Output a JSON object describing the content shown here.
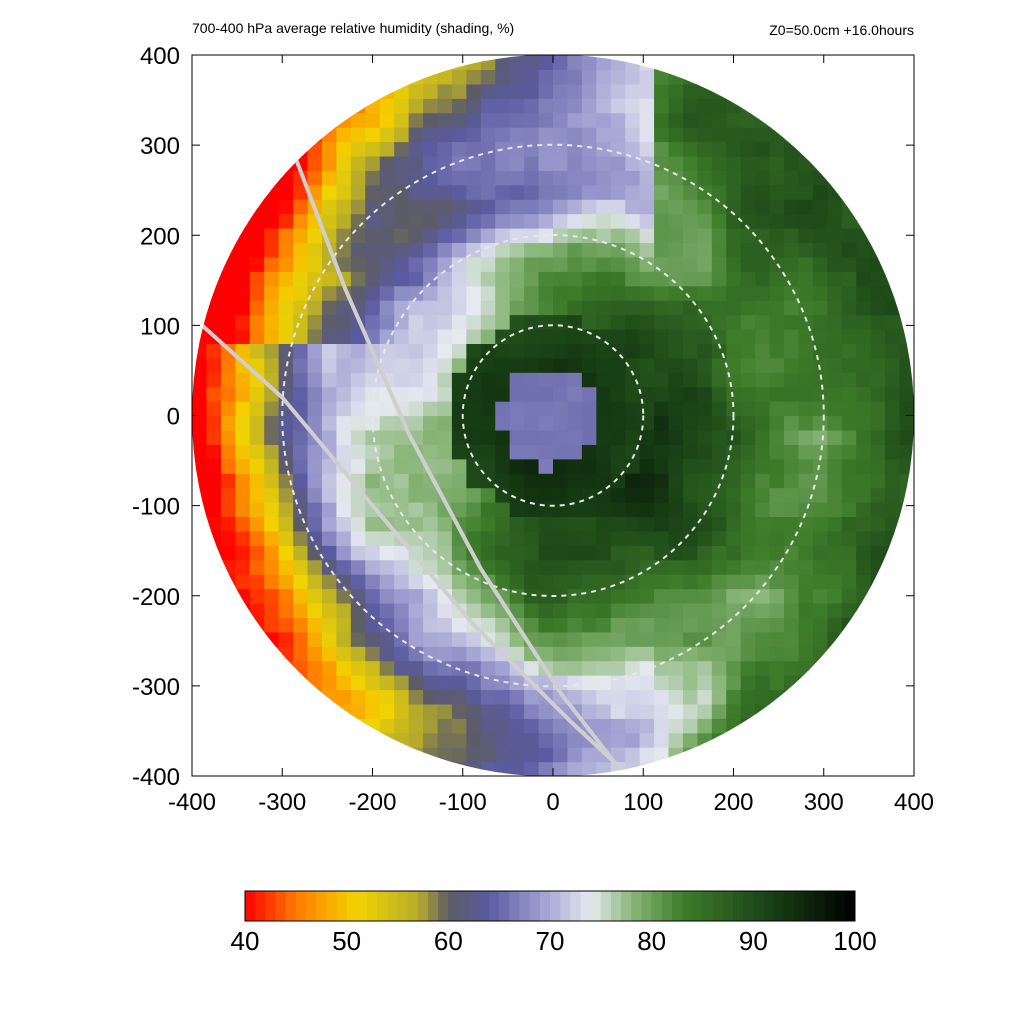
{
  "chart_data": {
    "type": "heatmap",
    "title": "700-400 hPa average relative humidity (shading, %)",
    "subtitle": "Z0=50.0cm  +16.0hours",
    "xlabel": "",
    "ylabel": "",
    "xlim": [
      -400,
      400
    ],
    "ylim": [
      -400,
      400
    ],
    "x_ticks": [
      -400,
      -300,
      -200,
      -100,
      0,
      100,
      200,
      300,
      400
    ],
    "y_ticks": [
      400,
      300,
      200,
      100,
      0,
      -100,
      -200,
      -300,
      -400
    ],
    "range_rings": [
      100,
      200,
      300
    ],
    "colorbar": {
      "min": 40,
      "max": 100,
      "ticks": [
        40,
        50,
        60,
        70,
        80,
        90,
        100
      ],
      "stops": [
        {
          "v": 40,
          "c": "#ff0000"
        },
        {
          "v": 45,
          "c": "#ff7a00"
        },
        {
          "v": 51,
          "c": "#f3d400"
        },
        {
          "v": 57,
          "c": "#b7ad2a"
        },
        {
          "v": 60,
          "c": "#5c5c66"
        },
        {
          "v": 64,
          "c": "#5a5aa0"
        },
        {
          "v": 69,
          "c": "#9c9cd0"
        },
        {
          "v": 74,
          "c": "#e6eaf0"
        },
        {
          "v": 78,
          "c": "#8ab77a"
        },
        {
          "v": 83,
          "c": "#3e7d2a"
        },
        {
          "v": 92,
          "c": "#173e14"
        },
        {
          "v": 100,
          "c": "#000000"
        }
      ]
    },
    "field_summary": {
      "eye_center": [
        -5,
        0
      ],
      "eye_radius": 55,
      "eye_value": 66,
      "eyewall_value": 93,
      "outer_west_value": 52,
      "outer_east_value": 84
    }
  }
}
